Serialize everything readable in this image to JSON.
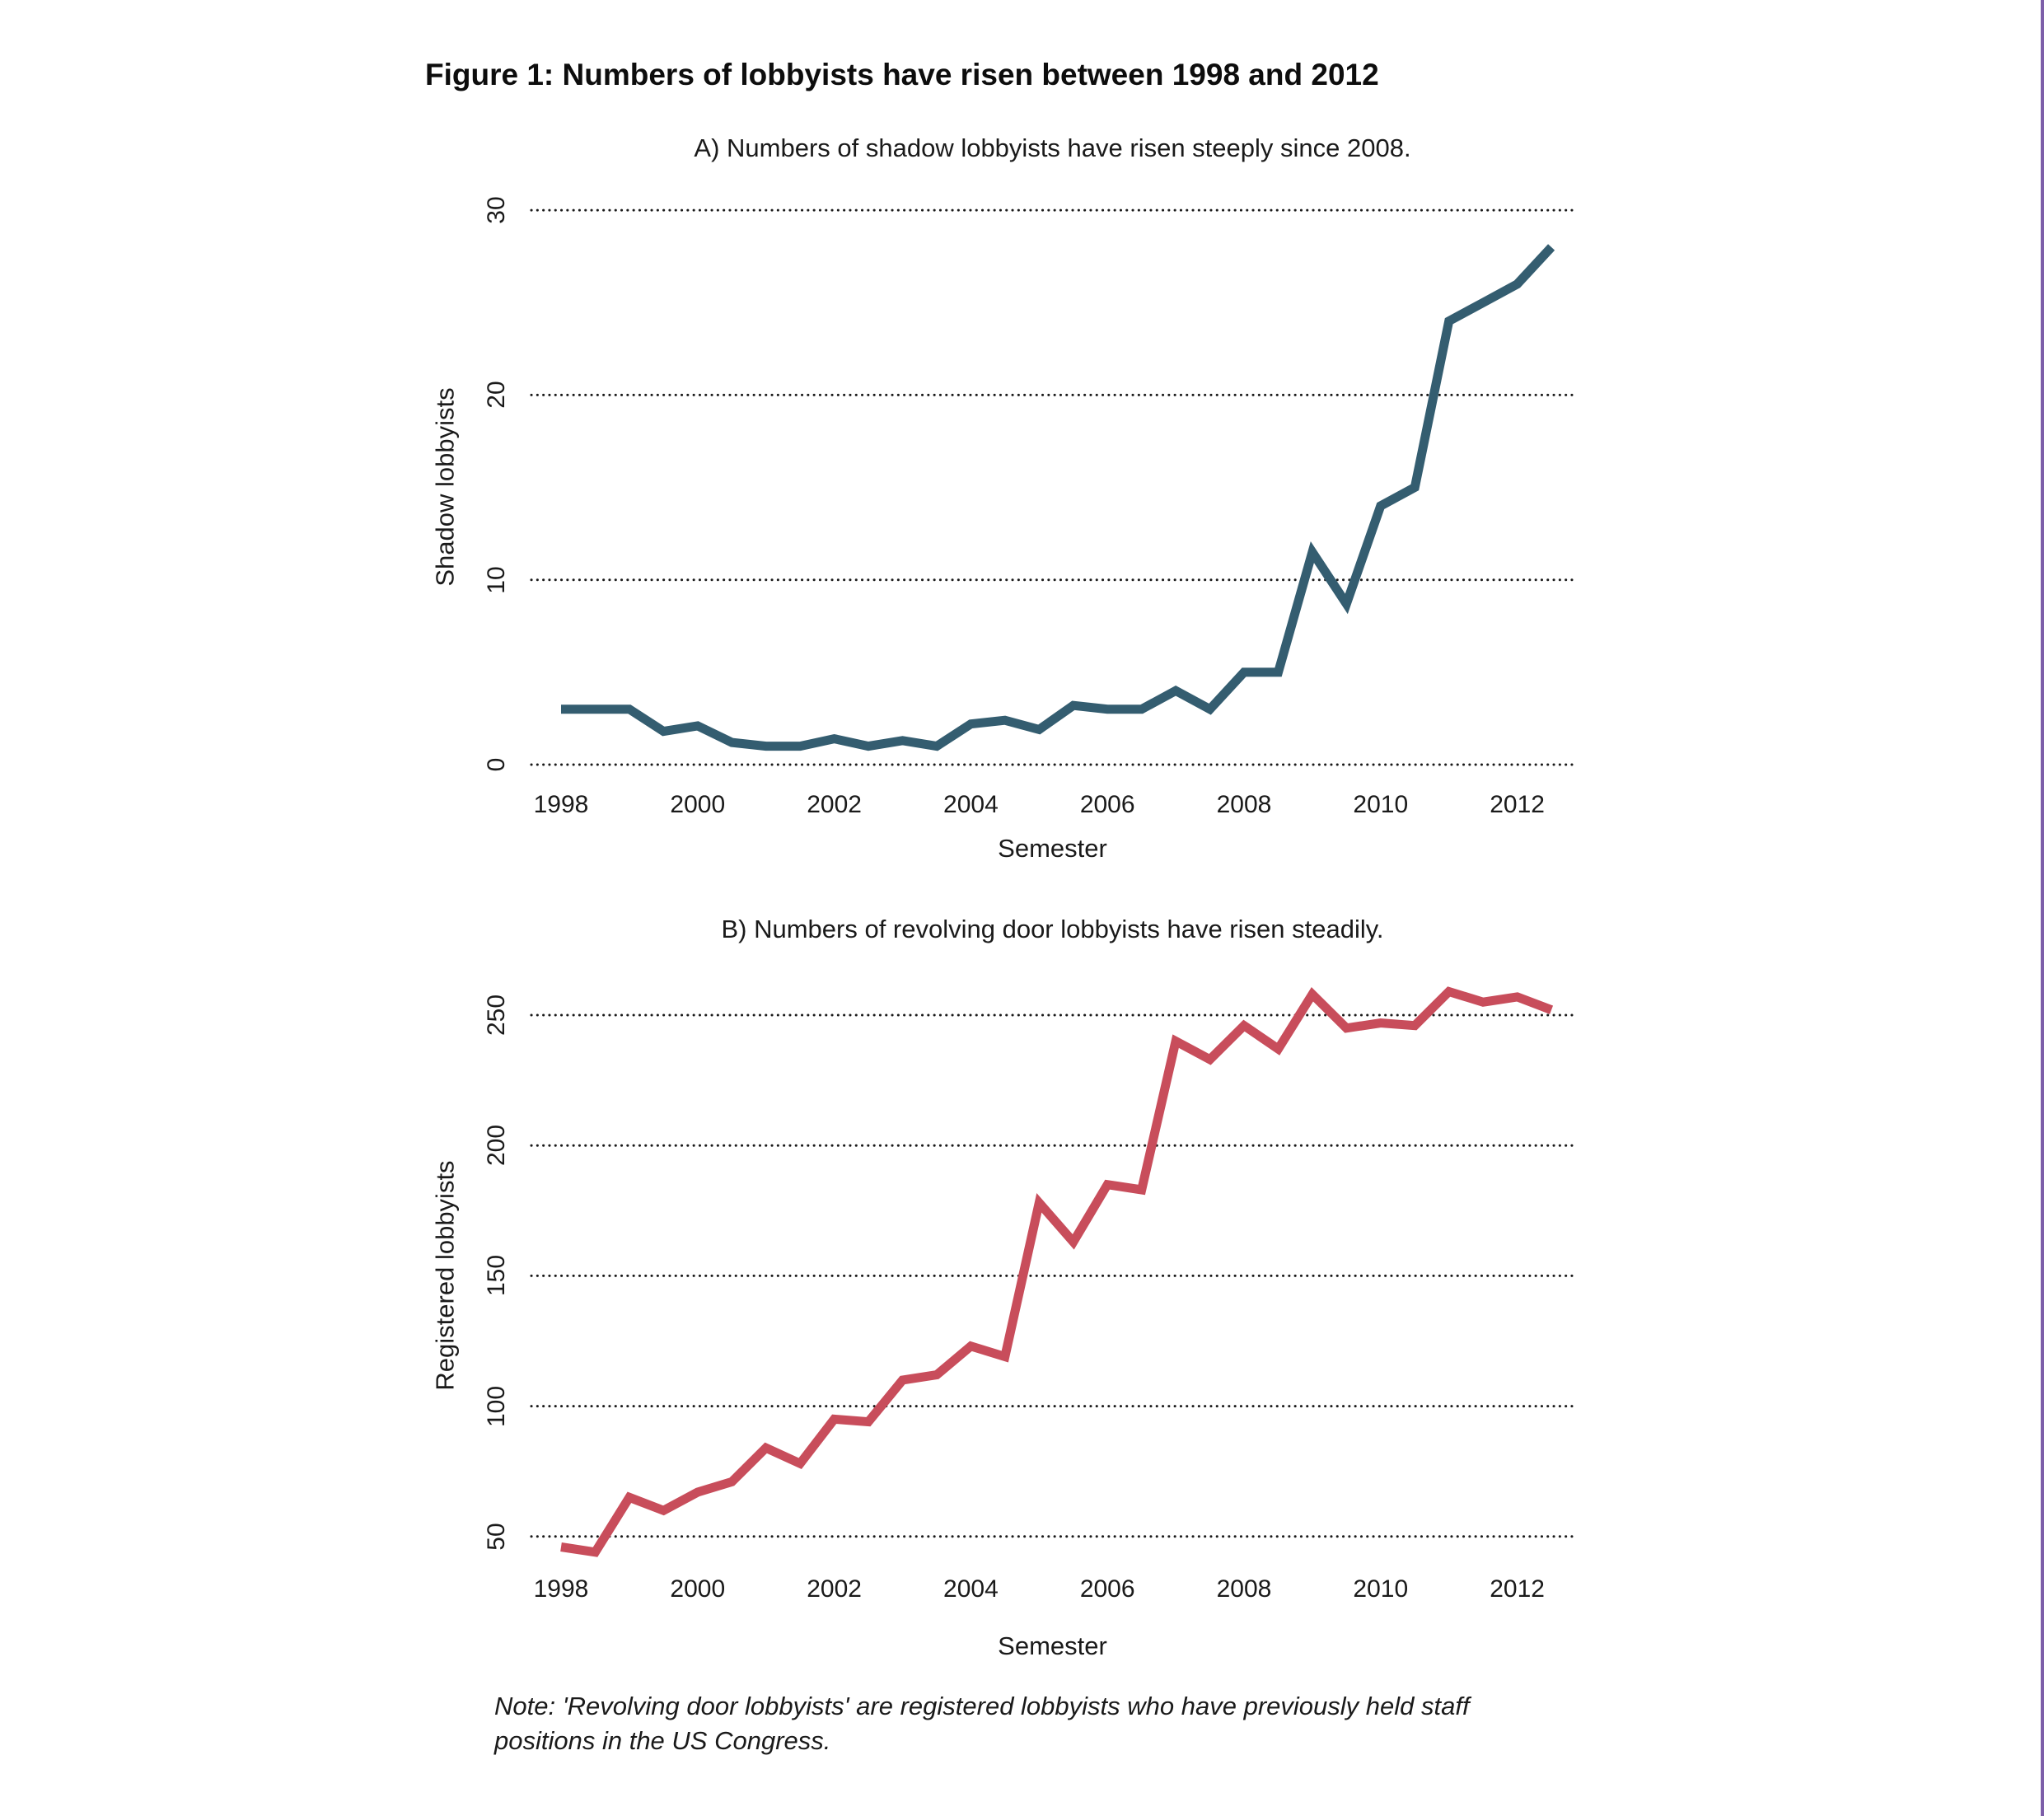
{
  "page": {
    "title": "Figure 1: Numbers of lobbyists have risen between 1998 and 2012",
    "note_lines": [
      "Note: 'Revolving door lobbyists' are registered lobbyists who have previously held staff",
      "positions in the US Congress."
    ],
    "accent_border_color": "#7D5FA9",
    "background_color": "#ffffff",
    "gridline_color": "#1a1a1a"
  },
  "chart_data": [
    {
      "id": "A",
      "type": "line",
      "title": "A) Numbers of shadow lobbyists have risen steeply since 2008.",
      "xlabel": "Semester",
      "ylabel": "Shadow lobbyists",
      "color": "#345D70",
      "grid": "horizontal-dotted",
      "legend": "none",
      "ylim": [
        0,
        30
      ],
      "yticks": [
        0,
        10,
        20,
        30
      ],
      "xticks": [
        1998,
        2000,
        2002,
        2004,
        2006,
        2008,
        2010,
        2012
      ],
      "x": [
        1998,
        1998.5,
        1999,
        1999.5,
        2000,
        2000.5,
        2001,
        2001.5,
        2002,
        2002.5,
        2003,
        2003.5,
        2004,
        2004.5,
        2005,
        2005.5,
        2006,
        2006.5,
        2007,
        2007.5,
        2008,
        2008.5,
        2009,
        2009.5,
        2010,
        2010.5,
        2011,
        2011.5,
        2012,
        2012.5
      ],
      "values": [
        3,
        3,
        3,
        1.8,
        2.1,
        1.2,
        1,
        1,
        1.4,
        1,
        1.3,
        1,
        2.2,
        2.4,
        1.9,
        3.2,
        3,
        3,
        4,
        3,
        5,
        5,
        11.5,
        8.7,
        14,
        15,
        24,
        25,
        26,
        28
      ]
    },
    {
      "id": "B",
      "type": "line",
      "title": "B) Numbers of revolving door lobbyists have risen steadily.",
      "xlabel": "Semester",
      "ylabel": "Registered lobbyists",
      "color": "#C84D5B",
      "grid": "horizontal-dotted",
      "legend": "none",
      "ylim": [
        40,
        265
      ],
      "yticks": [
        50,
        100,
        150,
        200,
        250
      ],
      "xticks": [
        1998,
        2000,
        2002,
        2004,
        2006,
        2008,
        2010,
        2012
      ],
      "x": [
        1998,
        1998.5,
        1999,
        1999.5,
        2000,
        2000.5,
        2001,
        2001.5,
        2002,
        2002.5,
        2003,
        2003.5,
        2004,
        2004.5,
        2005,
        2005.5,
        2006,
        2006.5,
        2007,
        2007.5,
        2008,
        2008.5,
        2009,
        2009.5,
        2010,
        2010.5,
        2011,
        2011.5,
        2012,
        2012.5
      ],
      "values": [
        46,
        44,
        65,
        60,
        67,
        71,
        84,
        78,
        95,
        94,
        110,
        112,
        123,
        119,
        178,
        163,
        185,
        183,
        240,
        233,
        246,
        237,
        258,
        245,
        247,
        246,
        259,
        255,
        257,
        252
      ]
    }
  ]
}
